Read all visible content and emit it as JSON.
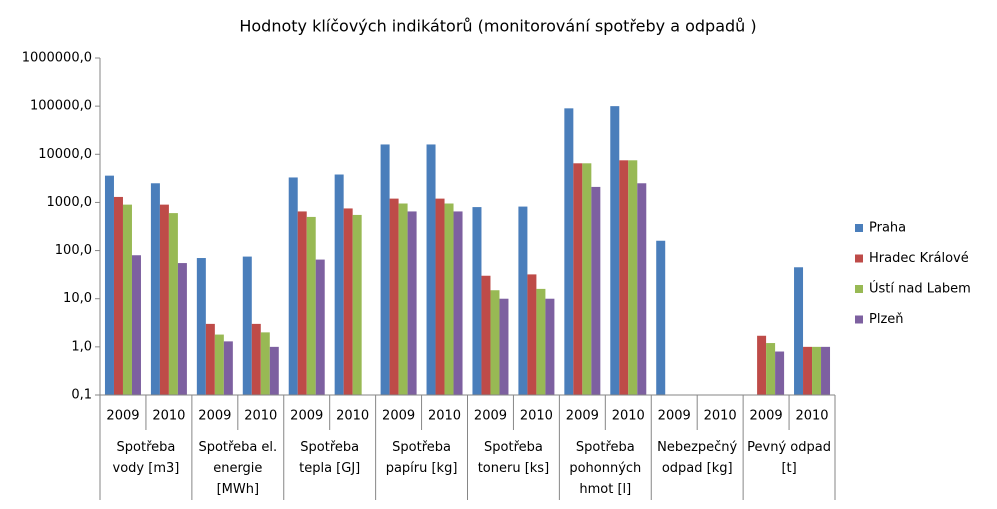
{
  "chart_data": {
    "type": "bar",
    "title": "Hodnoty klíčových indikátorů (monitorování spotřeby a odpadů )",
    "categories": [
      "2009",
      "2010",
      "2009",
      "2010",
      "2009",
      "2010",
      "2009",
      "2010",
      "2009",
      "2010",
      "2009",
      "2010",
      "2009",
      "2010",
      "2009",
      "2010"
    ],
    "groups": [
      "Spotřeba vody [m3]",
      "Spotřeba el. energie [MWh]",
      "Spotřeba tepla [GJ]",
      "Spotřeba papíru [kg]",
      "Spotřeba toneru [ks]",
      "Spotřeba pohonných hmot [l]",
      "Nebezpečný odpad [kg]",
      "Pevný odpad [t]"
    ],
    "series": [
      {
        "name": "Praha",
        "color": "#4a7ebb",
        "values": [
          3600,
          2500,
          70,
          75,
          3300,
          3800,
          16000,
          16000,
          800,
          820,
          90000,
          100000,
          160,
          null,
          null,
          45
        ]
      },
      {
        "name": "Hradec Králové",
        "color": "#be4b48",
        "values": [
          1300,
          900,
          3.0,
          3.0,
          650,
          750,
          1200,
          1200,
          30,
          32,
          6500,
          7500,
          null,
          null,
          1.7,
          1.0
        ]
      },
      {
        "name": "Ústí nad Labem",
        "color": "#98b954",
        "values": [
          900,
          600,
          1.8,
          2.0,
          500,
          550,
          950,
          950,
          15,
          16,
          6500,
          7500,
          null,
          null,
          1.2,
          1.0
        ]
      },
      {
        "name": "Plzeň",
        "color": "#7d60a0",
        "values": [
          80,
          55,
          1.3,
          1.0,
          65,
          null,
          650,
          650,
          10,
          10,
          2100,
          2500,
          null,
          null,
          0.8,
          1.0
        ]
      }
    ],
    "log_scale": true,
    "ylim": [
      0.1,
      1000000
    ],
    "yticks": [
      {
        "value": 0.1,
        "label": "0,1"
      },
      {
        "value": 1,
        "label": "1,0"
      },
      {
        "value": 10,
        "label": "10,0"
      },
      {
        "value": 100,
        "label": "100,0"
      },
      {
        "value": 1000,
        "label": "1000,0"
      },
      {
        "value": 10000,
        "label": "10000,0"
      },
      {
        "value": 100000,
        "label": "100000,0"
      },
      {
        "value": 1000000,
        "label": "1000000,0"
      }
    ],
    "grid": false,
    "legend": "right"
  }
}
